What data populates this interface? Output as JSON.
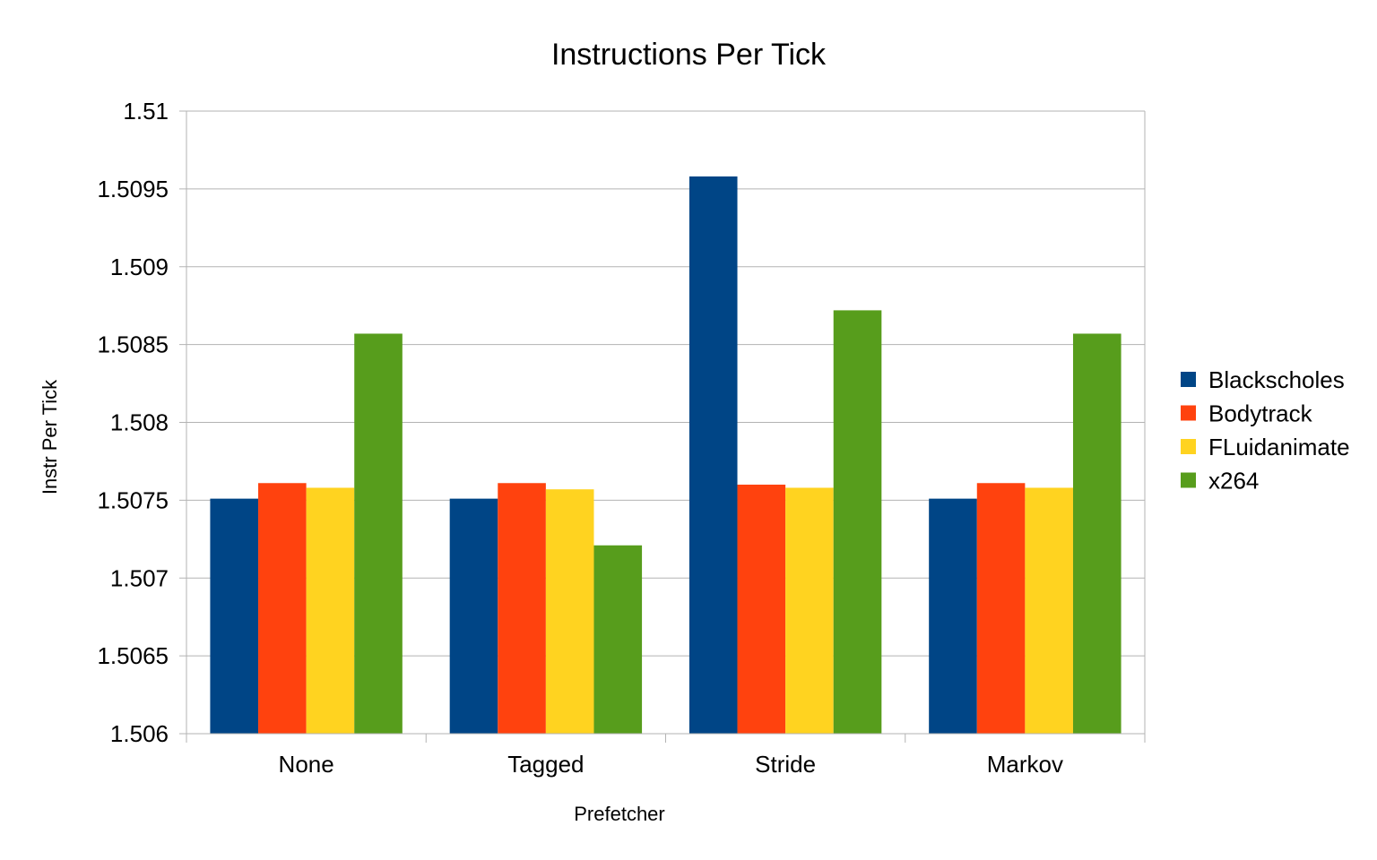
{
  "chart_data": {
    "type": "bar",
    "title": "Instructions Per Tick",
    "xlabel": "Prefetcher",
    "ylabel": "Instr Per Tick",
    "categories": [
      "None",
      "Tagged",
      "Stride",
      "Markov"
    ],
    "ylim": [
      1.506,
      1.51
    ],
    "yticks": [
      "1.506",
      "1.5065",
      "1.507",
      "1.5075",
      "1.508",
      "1.5085",
      "1.509",
      "1.5095",
      "1.51"
    ],
    "grid": true,
    "legend_position": "right",
    "series": [
      {
        "name": "Blackscholes",
        "color": "#004586",
        "values": [
          1.50751,
          1.50751,
          1.50958,
          1.50751
        ]
      },
      {
        "name": "Bodytrack",
        "color": "#ff420e",
        "values": [
          1.50761,
          1.50761,
          1.5076,
          1.50761
        ]
      },
      {
        "name": "FLuidanimate",
        "color": "#ffd320",
        "values": [
          1.50758,
          1.50757,
          1.50758,
          1.50758
        ]
      },
      {
        "name": "x264",
        "color": "#579d1c",
        "values": [
          1.50857,
          1.50721,
          1.50872,
          1.50857
        ]
      }
    ]
  }
}
